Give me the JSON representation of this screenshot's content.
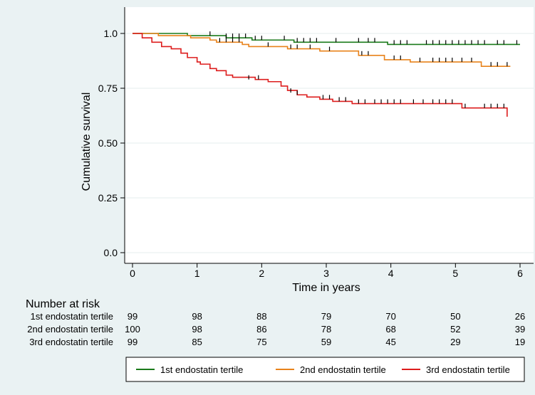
{
  "chart_data": {
    "type": "line",
    "subtype": "kaplan-meier",
    "title": "",
    "xlabel": "Time in years",
    "ylabel": "Cumulative survival",
    "xlim": [
      0,
      6
    ],
    "ylim": [
      0,
      1
    ],
    "x_ticks": [
      0,
      1,
      2,
      3,
      4,
      5,
      6
    ],
    "y_ticks": [
      0.0,
      0.25,
      0.5,
      0.75,
      1.0
    ],
    "y_tick_labels": [
      "0.0",
      "0.25",
      "0.50",
      "0.75",
      "1.0"
    ],
    "grid": "horizontal",
    "legend_position": "bottom",
    "series": [
      {
        "name": "1st endostatin tertile",
        "color": "#1a7a1a",
        "steps": [
          [
            0,
            1.0
          ],
          [
            0.85,
            0.99
          ],
          [
            1.15,
            0.99
          ],
          [
            1.45,
            0.98
          ],
          [
            1.85,
            0.97
          ],
          [
            2.35,
            0.97
          ],
          [
            2.5,
            0.96
          ],
          [
            3.8,
            0.96
          ],
          [
            3.95,
            0.95
          ],
          [
            6.0,
            0.95
          ]
        ],
        "censored": [
          [
            1.2,
            0.99
          ],
          [
            1.45,
            0.98
          ],
          [
            1.55,
            0.98
          ],
          [
            1.65,
            0.98
          ],
          [
            1.75,
            0.98
          ],
          [
            1.9,
            0.97
          ],
          [
            2.0,
            0.97
          ],
          [
            2.35,
            0.97
          ],
          [
            2.55,
            0.96
          ],
          [
            2.65,
            0.96
          ],
          [
            2.75,
            0.96
          ],
          [
            2.85,
            0.96
          ],
          [
            3.15,
            0.96
          ],
          [
            3.5,
            0.96
          ],
          [
            3.65,
            0.96
          ],
          [
            3.75,
            0.96
          ],
          [
            4.05,
            0.95
          ],
          [
            4.15,
            0.95
          ],
          [
            4.25,
            0.95
          ],
          [
            4.55,
            0.95
          ],
          [
            4.65,
            0.95
          ],
          [
            4.75,
            0.95
          ],
          [
            4.85,
            0.95
          ],
          [
            4.95,
            0.95
          ],
          [
            5.05,
            0.95
          ],
          [
            5.15,
            0.95
          ],
          [
            5.25,
            0.95
          ],
          [
            5.35,
            0.95
          ],
          [
            5.45,
            0.95
          ],
          [
            5.65,
            0.95
          ],
          [
            5.75,
            0.95
          ],
          [
            5.95,
            0.95
          ]
        ]
      },
      {
        "name": "2nd endostatin tertile",
        "color": "#e8821a",
        "steps": [
          [
            0,
            1.0
          ],
          [
            0.4,
            0.99
          ],
          [
            0.9,
            0.98
          ],
          [
            1.2,
            0.97
          ],
          [
            1.3,
            0.96
          ],
          [
            1.7,
            0.95
          ],
          [
            1.8,
            0.94
          ],
          [
            2.4,
            0.93
          ],
          [
            2.9,
            0.92
          ],
          [
            3.5,
            0.9
          ],
          [
            3.9,
            0.88
          ],
          [
            4.3,
            0.87
          ],
          [
            5.4,
            0.85
          ],
          [
            5.85,
            0.85
          ]
        ],
        "censored": [
          [
            1.35,
            0.96
          ],
          [
            1.45,
            0.96
          ],
          [
            1.55,
            0.96
          ],
          [
            1.65,
            0.96
          ],
          [
            2.1,
            0.94
          ],
          [
            2.45,
            0.93
          ],
          [
            2.55,
            0.93
          ],
          [
            2.75,
            0.93
          ],
          [
            3.05,
            0.92
          ],
          [
            3.55,
            0.9
          ],
          [
            3.65,
            0.9
          ],
          [
            4.05,
            0.88
          ],
          [
            4.15,
            0.88
          ],
          [
            4.45,
            0.87
          ],
          [
            4.65,
            0.87
          ],
          [
            4.75,
            0.87
          ],
          [
            4.85,
            0.87
          ],
          [
            4.95,
            0.87
          ],
          [
            5.1,
            0.87
          ],
          [
            5.25,
            0.87
          ],
          [
            5.55,
            0.85
          ],
          [
            5.65,
            0.85
          ],
          [
            5.8,
            0.85
          ]
        ]
      },
      {
        "name": "3rd endostatin tertile",
        "color": "#dd1c1c",
        "steps": [
          [
            0,
            1.0
          ],
          [
            0.15,
            0.98
          ],
          [
            0.3,
            0.96
          ],
          [
            0.45,
            0.94
          ],
          [
            0.6,
            0.93
          ],
          [
            0.75,
            0.91
          ],
          [
            0.85,
            0.89
          ],
          [
            1.0,
            0.87
          ],
          [
            1.05,
            0.86
          ],
          [
            1.2,
            0.84
          ],
          [
            1.3,
            0.83
          ],
          [
            1.45,
            0.81
          ],
          [
            1.55,
            0.8
          ],
          [
            1.9,
            0.79
          ],
          [
            2.1,
            0.78
          ],
          [
            2.3,
            0.76
          ],
          [
            2.4,
            0.74
          ],
          [
            2.55,
            0.72
          ],
          [
            2.7,
            0.71
          ],
          [
            2.9,
            0.7
          ],
          [
            3.1,
            0.69
          ],
          [
            3.4,
            0.68
          ],
          [
            4.3,
            0.68
          ],
          [
            5.1,
            0.66
          ],
          [
            5.8,
            0.62
          ]
        ],
        "censored": [
          [
            1.8,
            0.79
          ],
          [
            1.95,
            0.79
          ],
          [
            2.45,
            0.73
          ],
          [
            2.55,
            0.72
          ],
          [
            2.95,
            0.7
          ],
          [
            3.05,
            0.7
          ],
          [
            3.2,
            0.69
          ],
          [
            3.3,
            0.69
          ],
          [
            3.5,
            0.68
          ],
          [
            3.6,
            0.68
          ],
          [
            3.75,
            0.68
          ],
          [
            3.85,
            0.68
          ],
          [
            3.95,
            0.68
          ],
          [
            4.05,
            0.68
          ],
          [
            4.15,
            0.68
          ],
          [
            4.35,
            0.68
          ],
          [
            4.5,
            0.68
          ],
          [
            4.65,
            0.68
          ],
          [
            4.75,
            0.68
          ],
          [
            4.85,
            0.68
          ],
          [
            4.95,
            0.68
          ],
          [
            5.15,
            0.66
          ],
          [
            5.45,
            0.66
          ],
          [
            5.55,
            0.66
          ],
          [
            5.65,
            0.66
          ],
          [
            5.75,
            0.66
          ]
        ]
      }
    ],
    "risk_table": {
      "title": "Number at risk",
      "times": [
        0,
        1,
        2,
        3,
        4,
        5,
        6
      ],
      "rows": [
        {
          "label": "1st endostatin tertile",
          "values": [
            99,
            98,
            88,
            79,
            70,
            50,
            26
          ]
        },
        {
          "label": "2nd endostatin tertile",
          "values": [
            100,
            98,
            86,
            78,
            68,
            52,
            39
          ]
        },
        {
          "label": "3rd endostatin tertile",
          "values": [
            99,
            85,
            75,
            59,
            45,
            29,
            19
          ]
        }
      ]
    }
  }
}
